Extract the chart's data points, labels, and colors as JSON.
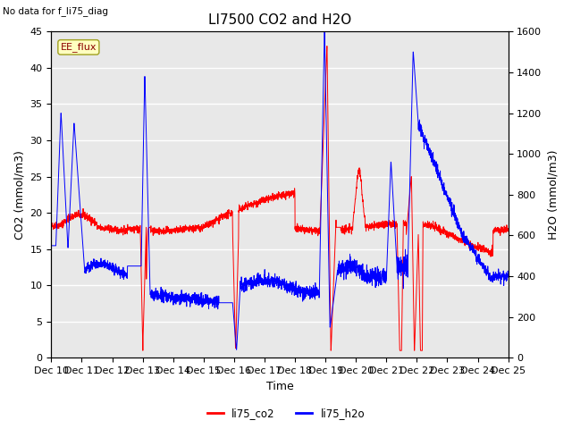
{
  "title": "LI7500 CO2 and H2O",
  "top_left_text": "No data for f_li75_diag",
  "annotation_box": "EE_flux",
  "xlabel": "Time",
  "ylabel_left": "CO2 (mmol/m3)",
  "ylabel_right": "H2O (mmol/m3)",
  "xlim": [
    0,
    15
  ],
  "ylim_left": [
    0,
    45
  ],
  "ylim_right": [
    0,
    1600
  ],
  "xtick_labels": [
    "Dec 10",
    "Dec 11",
    "Dec 12",
    "Dec 13",
    "Dec 14",
    "Dec 15",
    "Dec 16",
    "Dec 17",
    "Dec 18",
    "Dec 19",
    "Dec 20",
    "Dec 21",
    "Dec 22",
    "Dec 23",
    "Dec 24",
    "Dec 25"
  ],
  "yticks_left": [
    0,
    5,
    10,
    15,
    20,
    25,
    30,
    35,
    40,
    45
  ],
  "yticks_right": [
    0,
    200,
    400,
    600,
    800,
    1000,
    1200,
    1400,
    1600
  ],
  "legend_entries": [
    "li75_co2",
    "li75_h2o"
  ],
  "legend_colors": [
    "red",
    "blue"
  ],
  "plot_bg_color": "#e8e8e8",
  "co2_color": "red",
  "h2o_color": "blue",
  "title_fontsize": 11,
  "label_fontsize": 9,
  "tick_fontsize": 8,
  "annot_fontsize": 8
}
